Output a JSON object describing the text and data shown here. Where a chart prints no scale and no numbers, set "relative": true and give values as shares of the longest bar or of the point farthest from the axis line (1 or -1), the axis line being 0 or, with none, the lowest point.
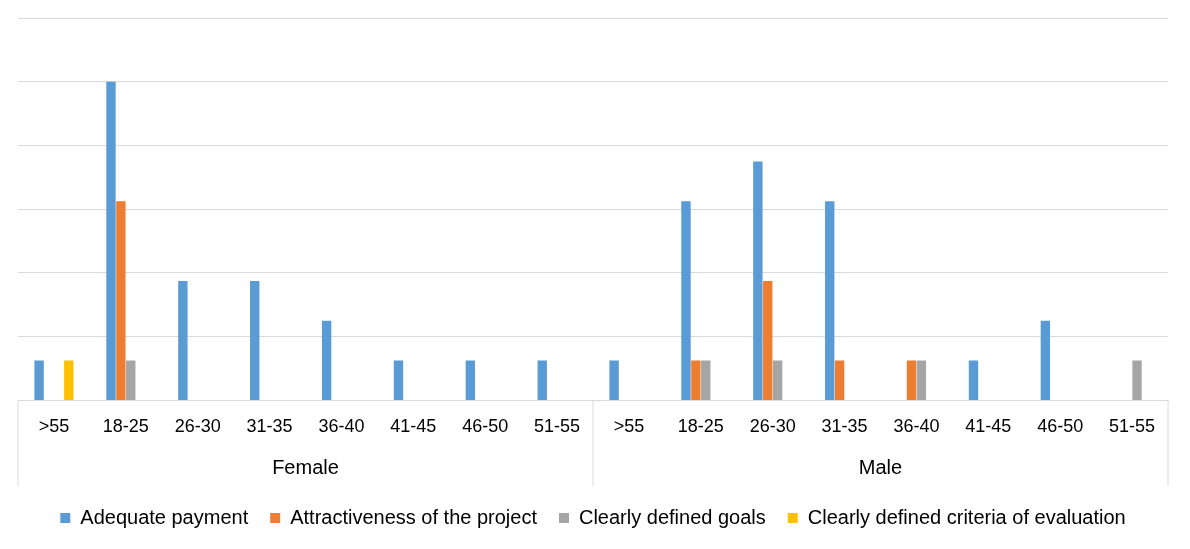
{
  "chart_data": {
    "type": "bar",
    "relative": true,
    "grid": "y",
    "legend": "bottom",
    "categories": [
      ">55",
      "18-25",
      "26-30",
      "31-35",
      "36-40",
      "41-45",
      "46-50",
      "51-55",
      ">55",
      "18-25",
      "26-30",
      "31-35",
      "36-40",
      "41-45",
      "46-50",
      "51-55"
    ],
    "annotations": [
      "Female",
      "Male"
    ],
    "series": [
      {
        "name": "Adequate payment",
        "color": "#5b9bd5",
        "values": [
          0.125,
          1,
          0.375,
          0.375,
          0.25,
          0.125,
          0.125,
          0.125,
          0.125,
          0.625,
          0.75,
          0.625,
          null,
          0.125,
          0.25,
          null
        ]
      },
      {
        "name": "Attractiveness of the project",
        "color": "#ed7d31",
        "values": [
          null,
          0.625,
          null,
          null,
          null,
          null,
          null,
          null,
          null,
          0.125,
          0.375,
          0.125,
          0.125,
          null,
          null,
          null
        ]
      },
      {
        "name": "Clearly defined goals",
        "color": "#a5a5a5",
        "values": [
          null,
          0.125,
          null,
          null,
          null,
          null,
          null,
          null,
          null,
          0.125,
          0.125,
          null,
          0.125,
          null,
          null,
          0.125
        ]
      },
      {
        "name": "Clearly defined criteria of evaluation",
        "color": "#ffc000",
        "values": [
          0.125,
          null,
          null,
          null,
          null,
          null,
          null,
          null,
          null,
          null,
          null,
          null,
          null,
          null,
          null,
          null
        ]
      }
    ]
  }
}
